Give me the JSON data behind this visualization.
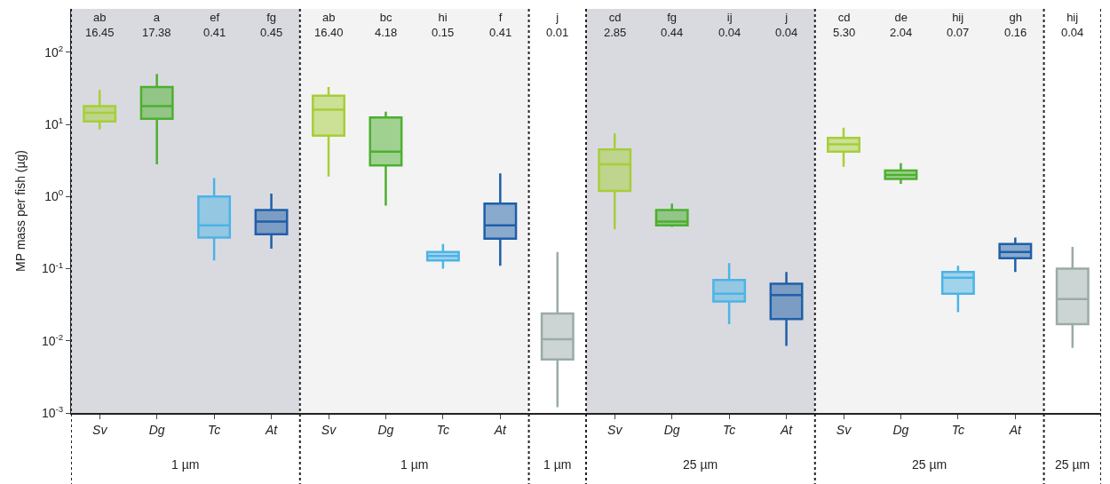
{
  "chart_data": {
    "type": "box",
    "ylabel": "MP mass per fish (µg)",
    "log": "y",
    "grid": false,
    "categories": [
      "Sv",
      "Dg",
      "Tc",
      "At",
      "Sv",
      "Dg",
      "Tc",
      "At",
      null,
      "Sv",
      "Dg",
      "Tc",
      "At",
      "Sv",
      "Dg",
      "Tc",
      "At",
      null
    ],
    "colors": [
      "#a6ce39",
      "#4daf2f",
      "#4db3e6",
      "#1f5fa8",
      "#a6ce39",
      "#4daf2f",
      "#4db3e6",
      "#1f5fa8",
      "#9aaba8",
      "#a6ce39",
      "#4daf2f",
      "#4db3e6",
      "#1f5fa8",
      "#a6ce39",
      "#4daf2f",
      "#4db3e6",
      "#1f5fa8",
      "#9aaba8"
    ],
    "boxes": [
      {
        "low": 8.5,
        "q1": 11,
        "median": 14.5,
        "q3": 18,
        "high": 30
      },
      {
        "low": 2.8,
        "q1": 12,
        "median": 18,
        "q3": 33,
        "high": 50
      },
      {
        "low": 0.13,
        "q1": 0.27,
        "median": 0.4,
        "q3": 1.0,
        "high": 1.8
      },
      {
        "low": 0.19,
        "q1": 0.3,
        "median": 0.45,
        "q3": 0.65,
        "high": 1.1
      },
      {
        "low": 1.9,
        "q1": 7,
        "median": 16,
        "q3": 25,
        "high": 33
      },
      {
        "low": 0.75,
        "q1": 2.7,
        "median": 4.2,
        "q3": 12.5,
        "high": 15
      },
      {
        "low": 0.1,
        "q1": 0.13,
        "median": 0.15,
        "q3": 0.17,
        "high": 0.22
      },
      {
        "low": 0.11,
        "q1": 0.26,
        "median": 0.4,
        "q3": 0.8,
        "high": 2.1
      },
      {
        "low": 0.0012,
        "q1": 0.0055,
        "median": 0.0105,
        "q3": 0.024,
        "high": 0.17
      },
      {
        "low": 0.35,
        "q1": 1.2,
        "median": 2.8,
        "q3": 4.5,
        "high": 7.5
      },
      {
        "low": 0.38,
        "q1": 0.4,
        "median": 0.45,
        "q3": 0.65,
        "high": 0.8
      },
      {
        "low": 0.017,
        "q1": 0.035,
        "median": 0.045,
        "q3": 0.07,
        "high": 0.12
      },
      {
        "low": 0.0085,
        "q1": 0.02,
        "median": 0.043,
        "q3": 0.062,
        "high": 0.09
      },
      {
        "low": 2.6,
        "q1": 4.2,
        "median": 5.3,
        "q3": 6.5,
        "high": 9
      },
      {
        "low": 1.5,
        "q1": 1.75,
        "median": 2.0,
        "q3": 2.3,
        "high": 2.9
      },
      {
        "low": 0.025,
        "q1": 0.045,
        "median": 0.075,
        "q3": 0.09,
        "high": 0.11
      },
      {
        "low": 0.09,
        "q1": 0.14,
        "median": 0.17,
        "q3": 0.22,
        "high": 0.27
      },
      {
        "low": 0.008,
        "q1": 0.017,
        "median": 0.038,
        "q3": 0.1,
        "high": 0.2
      }
    ],
    "ylim": [
      0.001,
      400
    ],
    "yticks": [
      {
        "value": 0.001,
        "label": "10$^{-3}$"
      },
      {
        "value": 0.01,
        "label": "10$^{-2}$"
      },
      {
        "value": 0.1,
        "label": "10$^{-1}$"
      },
      {
        "value": 1,
        "label": "10$^{0}$"
      },
      {
        "value": 10,
        "label": "10$^{1}$"
      },
      {
        "value": 100,
        "label": "10$^{2}$"
      }
    ],
    "annotations": [
      "ab\n16.45",
      "a\n17.38",
      "ef\n0.41",
      "fg\n0.45",
      "ab\n16.40",
      "bc\n4.18",
      "hi\n0.15",
      "f\n0.41",
      "j\n0.01",
      "cd\n2.85",
      "fg\n0.44",
      "ij\n0.04",
      "j\n0.04",
      "cd\n5.30",
      "de\n2.04",
      "hij\n0.07",
      "gh\n0.16",
      "hij\n0.04",
      "1 µm",
      "1 µm",
      "1 µm",
      "25 µm",
      "25 µm",
      "25 µm"
    ]
  }
}
